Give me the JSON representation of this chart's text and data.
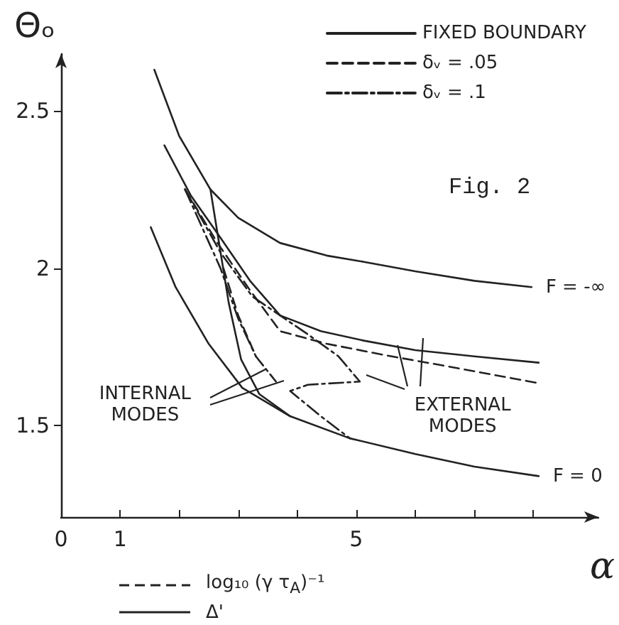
{
  "chart_data": {
    "type": "line",
    "xlabel": "α",
    "ylabel": "Θₒ",
    "xlim": [
      0,
      9.1
    ],
    "ylim": [
      1.21,
      2.68
    ],
    "xticks": [
      0,
      1,
      {
        "value": 2,
        "label": null
      },
      {
        "value": 3,
        "label": null
      },
      {
        "value": 4,
        "label": null
      },
      5,
      {
        "value": 6,
        "label": null
      },
      {
        "value": 7,
        "label": null
      },
      {
        "value": 8,
        "label": null
      }
    ],
    "yticks": [
      1.5,
      2,
      2.5
    ],
    "grid": false,
    "legend": "top right",
    "marker": "none",
    "series": [
      {
        "name": "FIXED BOUNDARY",
        "color": "#222222",
        "line_style": "solid",
        "x": [
          1.58,
          2.0,
          2.53,
          3.0,
          3.71,
          4.5,
          5.13,
          6.0,
          7.0,
          7.97
        ],
        "values": [
          2.63,
          2.42,
          2.25,
          2.16,
          2.08,
          2.04,
          2.02,
          1.99,
          1.96,
          1.94
        ]
      },
      {
        "color": "#222222",
        "line_style": "solid",
        "x": [
          1.75,
          2.2,
          2.65,
          3.2,
          3.71,
          4.4,
          5.13,
          6.0,
          7.0,
          8.09
        ],
        "values": [
          2.39,
          2.23,
          2.11,
          1.96,
          1.85,
          1.8,
          1.77,
          1.74,
          1.72,
          1.7
        ]
      },
      {
        "color": "#222222",
        "line_style": "solid",
        "x": [
          1.52,
          1.94,
          2.5,
          3.07,
          3.88,
          4.89,
          6.0,
          7.0,
          8.09
        ],
        "values": [
          2.13,
          1.94,
          1.76,
          1.62,
          1.53,
          1.46,
          1.41,
          1.37,
          1.34
        ]
      },
      {
        "color": "#222222",
        "line_style": "solid",
        "x": [
          2.53,
          2.65,
          2.84,
          3.05,
          3.36,
          3.88
        ],
        "values": [
          2.25,
          2.11,
          1.89,
          1.71,
          1.6,
          1.53
        ]
      },
      {
        "name": "δᵥ = .05",
        "color": "#222222",
        "line_style": "dashed",
        "x": [
          2.1,
          2.65,
          3.2,
          3.71,
          4.5,
          5.6,
          6.5,
          8.09
        ],
        "values": [
          2.25,
          2.08,
          1.93,
          1.8,
          1.76,
          1.72,
          1.69,
          1.635
        ]
      },
      {
        "color": "#222222",
        "line_style": "dashed",
        "x": [
          2.75,
          3.0,
          3.3
        ],
        "values": [
          2.0,
          1.85,
          1.72
        ]
      },
      {
        "name": "δᵥ = .1",
        "color": "#222222",
        "line_style": "dashdot",
        "x": [
          2.1,
          2.7,
          3.24,
          4.18,
          4.7,
          5.06,
          4.18,
          3.88,
          4.4,
          4.89
        ],
        "values": [
          2.25,
          2.05,
          1.91,
          1.79,
          1.72,
          1.64,
          1.63,
          1.61,
          1.53,
          1.46
        ]
      },
      {
        "color": "#222222",
        "line_style": "dashdot",
        "x": [
          2.1,
          2.7,
          3.0,
          3.3,
          3.64
        ],
        "values": [
          2.25,
          2.0,
          1.84,
          1.72,
          1.64
        ]
      }
    ],
    "annotations": [
      "Fig. 2",
      {
        "text": "F = -∞",
        "x": 7.97,
        "y": 1.94
      },
      {
        "text": "F = 0",
        "x": 8.09,
        "y": 1.34
      },
      {
        "text": "INTERNAL MODES",
        "x": 3.4,
        "y": 1.67
      },
      {
        "text": "EXTERNAL MODES",
        "x": 5.6,
        "y": 1.74
      },
      "log₁₀ (γ τ$_{A}$)⁻¹",
      "Δ'"
    ]
  }
}
